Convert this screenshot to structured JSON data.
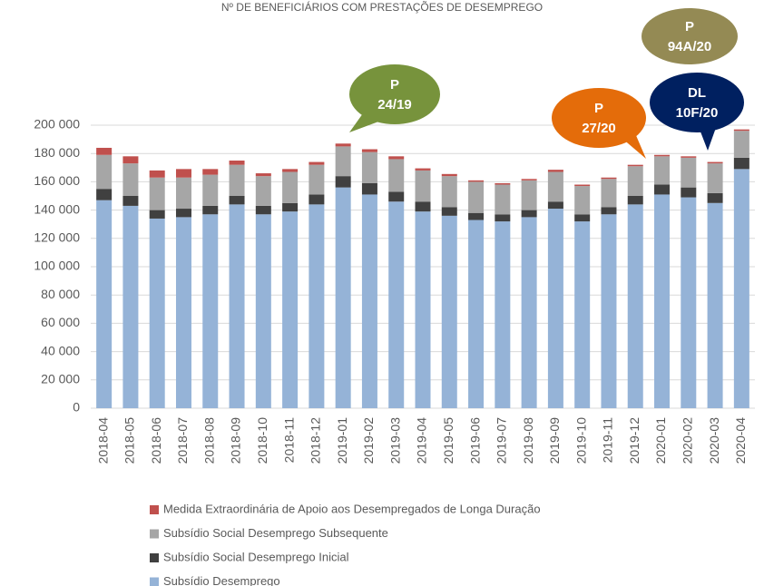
{
  "chart_data": {
    "type": "stacked-bar",
    "title": "Nº DE BENEFICIÁRIOS COM PRESTAÇÕES DE DESEMPREGO",
    "categories": [
      "2018-04",
      "2018-05",
      "2018-06",
      "2018-07",
      "2018-08",
      "2018-09",
      "2018-10",
      "2018-11",
      "2018-12",
      "2019-01",
      "2019-02",
      "2019-03",
      "2019-04",
      "2019-05",
      "2019-06",
      "2019-07",
      "2019-08",
      "2019-09",
      "2019-10",
      "2019-11",
      "2019-12",
      "2020-01",
      "2020-02",
      "2020-03",
      "2020-04"
    ],
    "series": [
      {
        "name": "Subsídio Desemprego",
        "color": "#95b3d7",
        "values": [
          147000,
          143000,
          134000,
          135000,
          137000,
          144000,
          137000,
          139000,
          144000,
          156000,
          151000,
          146000,
          139000,
          136000,
          133000,
          132000,
          135000,
          141000,
          132000,
          137000,
          144000,
          151000,
          149000,
          145000,
          169000
        ]
      },
      {
        "name": "Subsídio Social Desemprego Inicial",
        "color": "#404040",
        "values": [
          8000,
          7000,
          6000,
          6000,
          6000,
          6000,
          6000,
          6000,
          7000,
          8000,
          8000,
          7000,
          7000,
          6000,
          5000,
          5000,
          5000,
          5000,
          5000,
          5000,
          6000,
          7000,
          7000,
          7000,
          8000
        ]
      },
      {
        "name": "Subsídio Social Desemprego Subsequente",
        "color": "#a6a6a6",
        "values": [
          24000,
          23000,
          23000,
          22000,
          22000,
          22000,
          21000,
          22000,
          21000,
          21000,
          22000,
          23000,
          22000,
          22000,
          22000,
          21000,
          21000,
          21000,
          20000,
          20000,
          21000,
          20000,
          21000,
          21000,
          19000
        ]
      },
      {
        "name": "Medida Extraordinária de Apoio aos Desempregados de Longa Duração",
        "color": "#c0504d",
        "values": [
          5000,
          5000,
          5000,
          6000,
          4000,
          3000,
          2000,
          2000,
          2000,
          2000,
          2000,
          2000,
          1500,
          1500,
          1000,
          1000,
          1000,
          1500,
          1000,
          1000,
          1000,
          1000,
          1000,
          1000,
          1000
        ]
      }
    ],
    "ylim": [
      0,
      200000
    ],
    "yticks": [
      0,
      {
        "value": 20000,
        "label": "20 000"
      },
      {
        "value": 40000,
        "label": "40 000"
      },
      {
        "value": 60000,
        "label": "60 000"
      },
      {
        "value": 80000,
        "label": "80 000"
      },
      {
        "value": 100000,
        "label": "100 000"
      },
      {
        "value": 120000,
        "label": "120 000"
      },
      {
        "value": 140000,
        "label": "140 000"
      },
      {
        "value": 160000,
        "label": "160 000"
      },
      {
        "value": 180000,
        "label": "180 000"
      },
      {
        "value": 200000,
        "label": "200 000"
      }
    ],
    "grid": true,
    "annotations": [
      {
        "lines": [
          "P",
          "24/19"
        ],
        "color": "#77933c"
      },
      {
        "lines": [
          "P",
          "27/20"
        ],
        "color": "#e46c0a"
      },
      {
        "lines": [
          "P",
          "94A/20"
        ],
        "color": "#948a54"
      },
      {
        "lines": [
          "DL",
          "10F/20"
        ],
        "color": "#002060"
      }
    ]
  }
}
